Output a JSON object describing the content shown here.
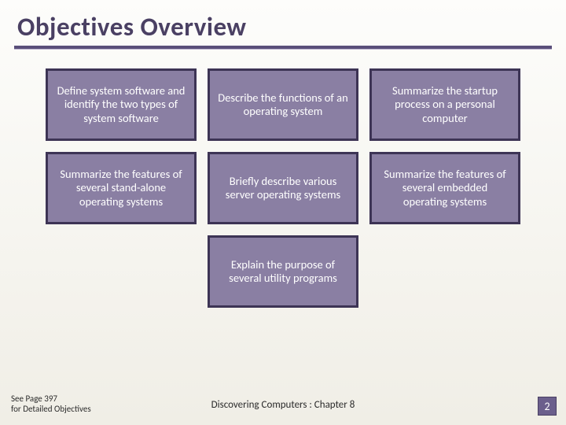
{
  "title": "Objectives Overview",
  "title_color": "#4a4063",
  "underline_color": "#5a4f7a",
  "card_bg": "#8a7fa3",
  "card_border": "#3d3455",
  "card_text_color": "#ffffff",
  "page_bg_top": "#fdfdfb",
  "page_bg_bottom": "#f0eee6",
  "objectives": {
    "row1": [
      "Define system software and identify the two types of system software",
      "Describe the functions of an operating system",
      "Summarize the startup process on a personal computer"
    ],
    "row2": [
      "Summarize the features of several stand-alone operating systems",
      "Briefly describe various server operating systems",
      "Summarize the features of several embedded operating systems"
    ],
    "row3": [
      "Explain the purpose of several utility programs"
    ]
  },
  "footer": {
    "left_line1": "See Page 397",
    "left_line2": "for Detailed Objectives",
    "center": "Discovering Computers : Chapter 8",
    "page_number": "2"
  }
}
